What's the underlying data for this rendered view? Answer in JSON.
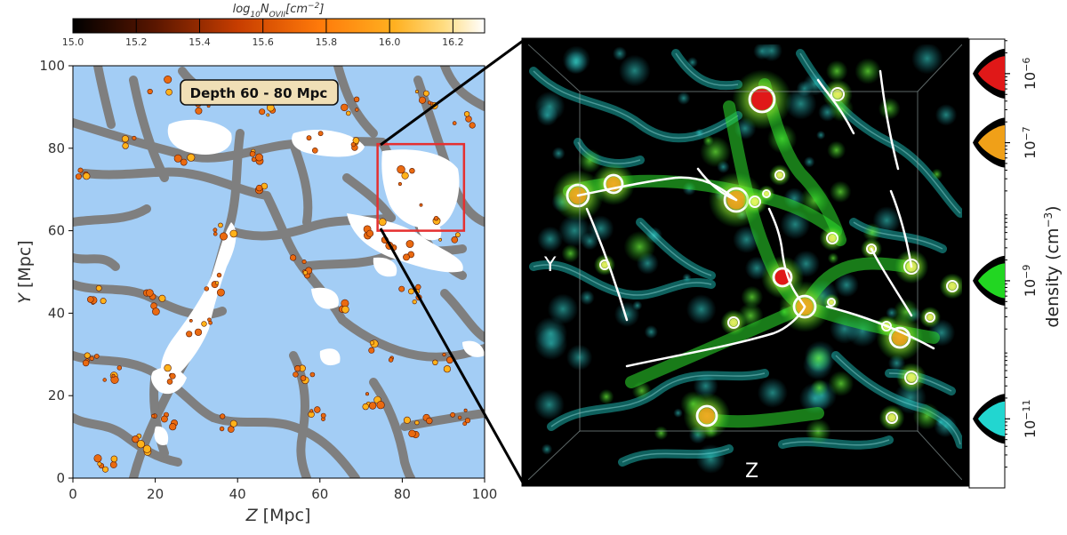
{
  "chart_data": [
    {
      "type": "heatmap",
      "title": "Depth 60 - 80 Mpc",
      "xlabel": "Z [Mpc]",
      "ylabel": "Y [Mpc]",
      "xlim": [
        0,
        100
      ],
      "ylim": [
        0,
        100
      ],
      "xticks": [
        "0",
        "20",
        "40",
        "60",
        "80",
        "100"
      ],
      "yticks": [
        "0",
        "20",
        "40",
        "60",
        "80",
        "100"
      ],
      "colorbar": {
        "label": "log10N_OVII[cm^-2]",
        "label_main": "log",
        "label_sub": "10",
        "label_n": "N",
        "label_nsub": "OVII",
        "label_unit": "[cm",
        "label_exp": "−2",
        "label_close": "]",
        "range": [
          15.0,
          16.3
        ],
        "ticks": [
          "15.0",
          "15.2",
          "15.4",
          "15.6",
          "15.8",
          "16.0",
          "16.2"
        ],
        "tick_values": [
          15.0,
          15.2,
          15.4,
          15.6,
          15.8,
          16.0,
          16.2
        ]
      },
      "highlight_box": {
        "z_range": [
          74,
          95
        ],
        "y_range": [
          60,
          81
        ],
        "color": "#e53030"
      },
      "colors": {
        "void": "#a3cdf5",
        "filament": "#7f7f7f",
        "hot_gas": "#ffffff",
        "absorber": "#ea6a10"
      }
    },
    {
      "type": "heatmap",
      "subtype": "3d-volume-render",
      "axis_labels": {
        "vertical": "Y",
        "horizontal": "Z"
      },
      "colorbar": {
        "label_main": "density",
        "label_unit": "(cm",
        "label_exp": "−3",
        "label_close": ")",
        "ticks": [
          {
            "base": "10",
            "exp": "−6",
            "value": 1e-06,
            "color": "#e01818"
          },
          {
            "base": "10",
            "exp": "−7",
            "value": 1e-07,
            "color": "#f0a018"
          },
          {
            "base": "10",
            "exp": "−9",
            "value": 1e-09,
            "color": "#22d622"
          },
          {
            "base": "10",
            "exp": "−11",
            "value": 1e-11,
            "color": "#22d6d0"
          }
        ]
      },
      "colors": {
        "background": "#000000",
        "low": "#22d6d0",
        "mid": "#22d622",
        "high_mid": "#f0a018",
        "high": "#e01818",
        "skeleton": "#ffffff"
      }
    }
  ]
}
